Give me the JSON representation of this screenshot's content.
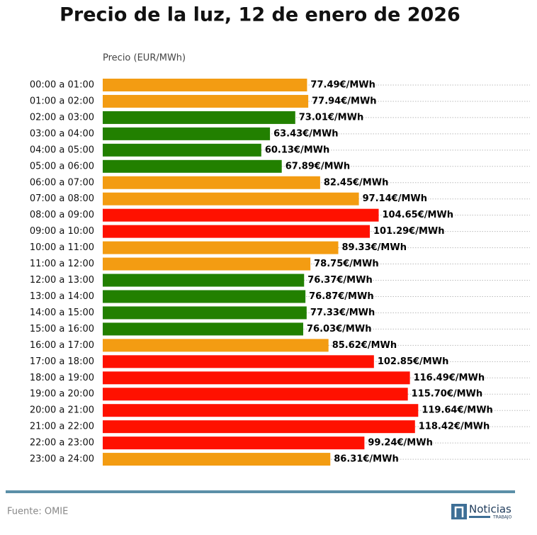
{
  "chart_data": {
    "type": "bar",
    "orientation": "horizontal",
    "title": "Precio de la luz, 12 de enero de 2026",
    "xlabel": "Precio (EUR/MWh)",
    "categories": [
      "00:00 a 01:00",
      "01:00 a 02:00",
      "02:00 a 03:00",
      "03:00 a 04:00",
      "04:00 a 05:00",
      "05:00 a 06:00",
      "06:00 a 07:00",
      "07:00 a 08:00",
      "08:00 a 09:00",
      "09:00 a 10:00",
      "10:00 a 11:00",
      "11:00 a 12:00",
      "12:00 a 13:00",
      "13:00 a 14:00",
      "14:00 a 15:00",
      "15:00 a 16:00",
      "16:00 a 17:00",
      "17:00 a 18:00",
      "18:00 a 19:00",
      "19:00 a 20:00",
      "20:00 a 21:00",
      "21:00 a 22:00",
      "22:00 a 23:00",
      "23:00 a 24:00"
    ],
    "values": [
      77.49,
      77.94,
      73.01,
      63.43,
      60.13,
      67.89,
      82.45,
      97.14,
      104.65,
      101.29,
      89.33,
      78.75,
      76.37,
      76.87,
      77.33,
      76.03,
      85.62,
      102.85,
      116.49,
      115.7,
      119.64,
      118.42,
      99.24,
      86.31
    ],
    "value_labels": [
      "77.49€/MWh",
      "77.94€/MWh",
      "73.01€/MWh",
      "63.43€/MWh",
      "60.13€/MWh",
      "67.89€/MWh",
      "82.45€/MWh",
      "97.14€/MWh",
      "104.65€/MWh",
      "101.29€/MWh",
      "89.33€/MWh",
      "78.75€/MWh",
      "76.37€/MWh",
      "76.87€/MWh",
      "77.33€/MWh",
      "76.03€/MWh",
      "85.62€/MWh",
      "102.85€/MWh",
      "116.49€/MWh",
      "115.70€/MWh",
      "119.64€/MWh",
      "118.42€/MWh",
      "99.24€/MWh",
      "86.31€/MWh"
    ],
    "colors": [
      "#f39c12",
      "#f39c12",
      "#228000",
      "#228000",
      "#228000",
      "#228000",
      "#f39c12",
      "#f39c12",
      "#ff1100",
      "#ff1100",
      "#f39c12",
      "#f39c12",
      "#228000",
      "#228000",
      "#228000",
      "#228000",
      "#f39c12",
      "#ff1100",
      "#ff1100",
      "#ff1100",
      "#ff1100",
      "#ff1100",
      "#ff1100",
      "#f39c12"
    ],
    "xlim": [
      0,
      162
    ]
  },
  "footer": {
    "source": "Fuente: OMIE",
    "logo": "Noticias",
    "logo_sub": "TRABAJO"
  }
}
